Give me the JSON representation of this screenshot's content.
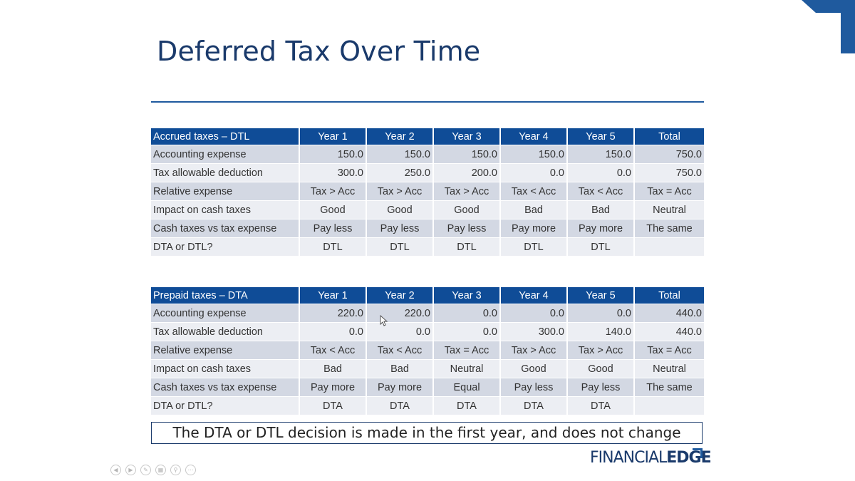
{
  "title": "Deferred Tax Over Time",
  "columns": [
    "Year 1",
    "Year 2",
    "Year 3",
    "Year 4",
    "Year 5",
    "Total"
  ],
  "table1": {
    "header": "Accrued taxes – DTL",
    "rows": [
      {
        "label": "Accounting expense",
        "cells": [
          "150.0",
          "150.0",
          "150.0",
          "150.0",
          "150.0",
          "750.0"
        ]
      },
      {
        "label": "Tax allowable deduction",
        "cells": [
          "300.0",
          "250.0",
          "200.0",
          "0.0",
          "0.0",
          "750.0"
        ]
      },
      {
        "label": "Relative expense",
        "cells": [
          "Tax > Acc",
          "Tax > Acc",
          "Tax > Acc",
          "Tax < Acc",
          "Tax < Acc",
          "Tax = Acc"
        ]
      },
      {
        "label": "Impact on cash taxes",
        "cells": [
          "Good",
          "Good",
          "Good",
          "Bad",
          "Bad",
          "Neutral"
        ]
      },
      {
        "label": "Cash taxes vs tax expense",
        "cells": [
          "Pay less",
          "Pay less",
          "Pay less",
          "Pay more",
          "Pay more",
          "The same"
        ]
      },
      {
        "label": "DTA or DTL?",
        "cells": [
          "DTL",
          "DTL",
          "DTL",
          "DTL",
          "DTL",
          ""
        ]
      }
    ]
  },
  "table2": {
    "header": "Prepaid taxes – DTA",
    "rows": [
      {
        "label": "Accounting expense",
        "cells": [
          "220.0",
          "220.0",
          "0.0",
          "0.0",
          "0.0",
          "440.0"
        ]
      },
      {
        "label": "Tax allowable deduction",
        "cells": [
          "0.0",
          "0.0",
          "0.0",
          "300.0",
          "140.0",
          "440.0"
        ]
      },
      {
        "label": "Relative expense",
        "cells": [
          "Tax < Acc",
          "Tax < Acc",
          "Tax = Acc",
          "Tax > Acc",
          "Tax > Acc",
          "Tax = Acc"
        ]
      },
      {
        "label": "Impact on cash taxes",
        "cells": [
          "Bad",
          "Bad",
          "Neutral",
          "Good",
          "Good",
          "Neutral"
        ]
      },
      {
        "label": "Cash taxes vs tax expense",
        "cells": [
          "Pay more",
          "Pay more",
          "Equal",
          "Pay less",
          "Pay less",
          "The same"
        ]
      },
      {
        "label": "DTA or DTL?",
        "cells": [
          "DTA",
          "DTA",
          "DTA",
          "DTA",
          "DTA",
          ""
        ]
      }
    ]
  },
  "note": "The DTA or DTL decision is made in the first year, and does not change",
  "logo": {
    "part1": "FINANCIAL",
    "part2": "EDGE"
  },
  "controls": [
    "previous-icon",
    "next-icon",
    "pen-icon",
    "slides-icon",
    "zoom-icon",
    "more-icon"
  ],
  "colors": {
    "header_blue": "#0f4c97",
    "title_navy": "#1a3a6b",
    "row_shade": "#d3d8e3",
    "row_light": "#eceef3"
  }
}
